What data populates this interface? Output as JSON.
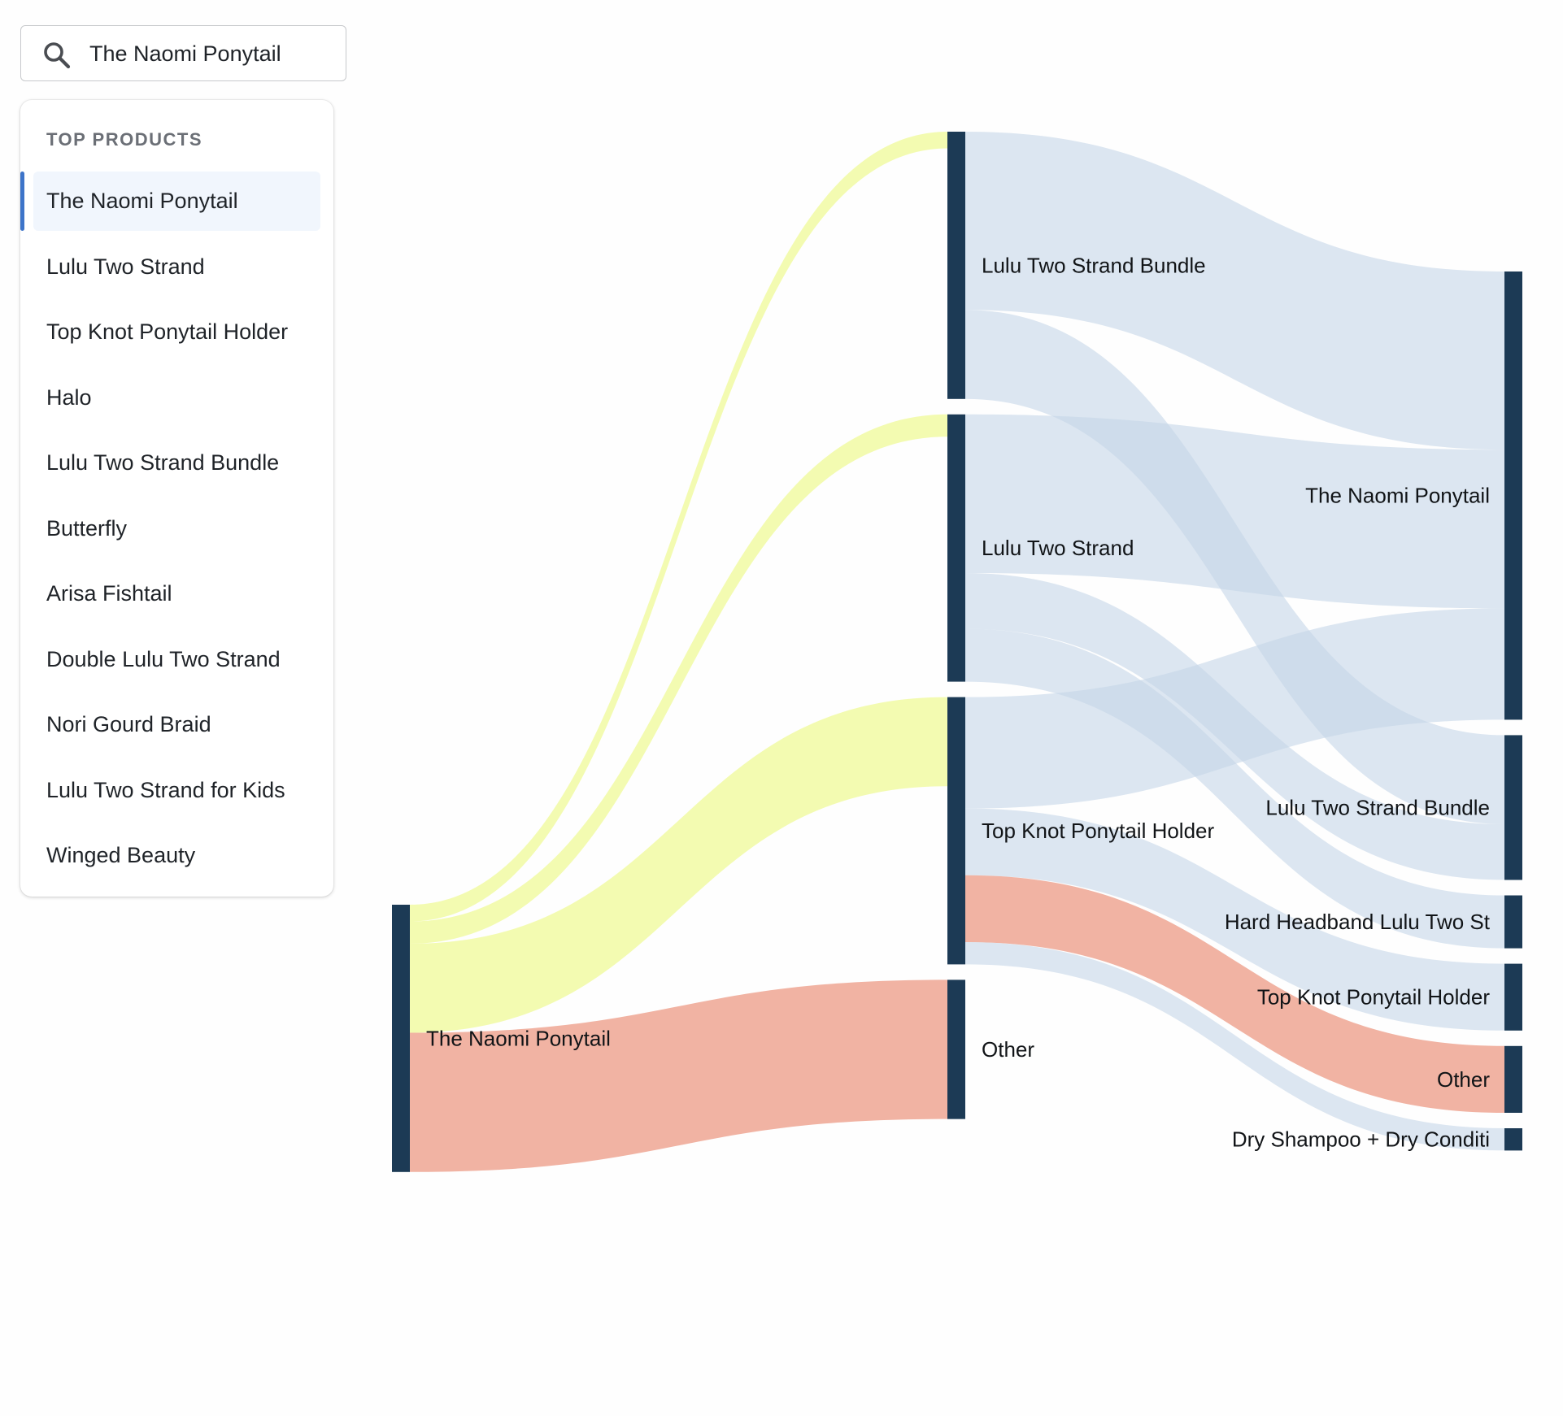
{
  "search": {
    "icon": "search-icon",
    "value": "The Naomi Ponytail",
    "placeholder": ""
  },
  "dropdown": {
    "heading": "TOP PRODUCTS",
    "selected_index": 0,
    "accent_color": "#3d74c9",
    "items": [
      {
        "label": "The Naomi Ponytail"
      },
      {
        "label": "Lulu Two Strand"
      },
      {
        "label": "Top Knot Ponytail Holder"
      },
      {
        "label": "Halo"
      },
      {
        "label": "Lulu Two Strand Bundle"
      },
      {
        "label": "Butterfly"
      },
      {
        "label": "Arisa Fishtail"
      },
      {
        "label": "Double Lulu Two Strand"
      },
      {
        "label": "Nori Gourd Braid"
      },
      {
        "label": "Lulu Two Strand for Kids"
      },
      {
        "label": "Winged Beauty"
      }
    ]
  },
  "colors": {
    "node": "#1c3a55",
    "link_default": "#c5d5e8",
    "link_yellow": "#f0fa9e",
    "link_salmon": "#eda08c"
  },
  "chart_data": {
    "type": "sankey",
    "nodes": [
      {
        "id": "c0-naomi",
        "label": "The Naomi Ponytail",
        "column": 0
      },
      {
        "id": "c1-bundle",
        "label": "Lulu Two Strand Bundle",
        "column": 1
      },
      {
        "id": "c1-lulu",
        "label": "Lulu Two Strand",
        "column": 1
      },
      {
        "id": "c1-topknot",
        "label": "Top Knot Ponytail Holder",
        "column": 1
      },
      {
        "id": "c1-other",
        "label": "Other",
        "column": 1
      },
      {
        "id": "c2-naomi",
        "label": "The Naomi Ponytail",
        "column": 2
      },
      {
        "id": "c2-bundle",
        "label": "Lulu Two Strand Bundle",
        "column": 2
      },
      {
        "id": "c2-headband",
        "label": "Hard Headband Lulu Two St",
        "column": 2
      },
      {
        "id": "c2-topknot",
        "label": "Top Knot Ponytail Holder",
        "column": 2
      },
      {
        "id": "c2-other",
        "label": "Other",
        "column": 2
      },
      {
        "id": "c2-dryshampoo",
        "label": "Dry Shampoo + Dry Conditi",
        "column": 2
      }
    ],
    "links": [
      {
        "source": "c0-naomi",
        "target": "c1-bundle",
        "value": 3,
        "color": "yellow"
      },
      {
        "source": "c0-naomi",
        "target": "c1-lulu",
        "value": 4,
        "color": "yellow"
      },
      {
        "source": "c0-naomi",
        "target": "c1-topknot",
        "value": 16,
        "color": "yellow"
      },
      {
        "source": "c0-naomi",
        "target": "c1-other",
        "value": 25,
        "color": "salmon"
      },
      {
        "source": "c1-bundle",
        "target": "c2-naomi",
        "value": 32,
        "color": "default"
      },
      {
        "source": "c1-bundle",
        "target": "c2-bundle",
        "value": 16,
        "color": "default"
      },
      {
        "source": "c1-lulu",
        "target": "c2-naomi",
        "value": 28.5,
        "color": "default"
      },
      {
        "source": "c1-lulu",
        "target": "c2-bundle",
        "value": 10,
        "color": "default"
      },
      {
        "source": "c1-lulu",
        "target": "c2-headband",
        "value": 9.5,
        "color": "default"
      },
      {
        "source": "c1-topknot",
        "target": "c2-naomi",
        "value": 20,
        "color": "default"
      },
      {
        "source": "c1-topknot",
        "target": "c2-topknot",
        "value": 12,
        "color": "default"
      },
      {
        "source": "c1-topknot",
        "target": "c2-other",
        "value": 12,
        "color": "salmon"
      },
      {
        "source": "c1-topknot",
        "target": "c2-dryshampoo",
        "value": 4,
        "color": "default"
      }
    ]
  }
}
